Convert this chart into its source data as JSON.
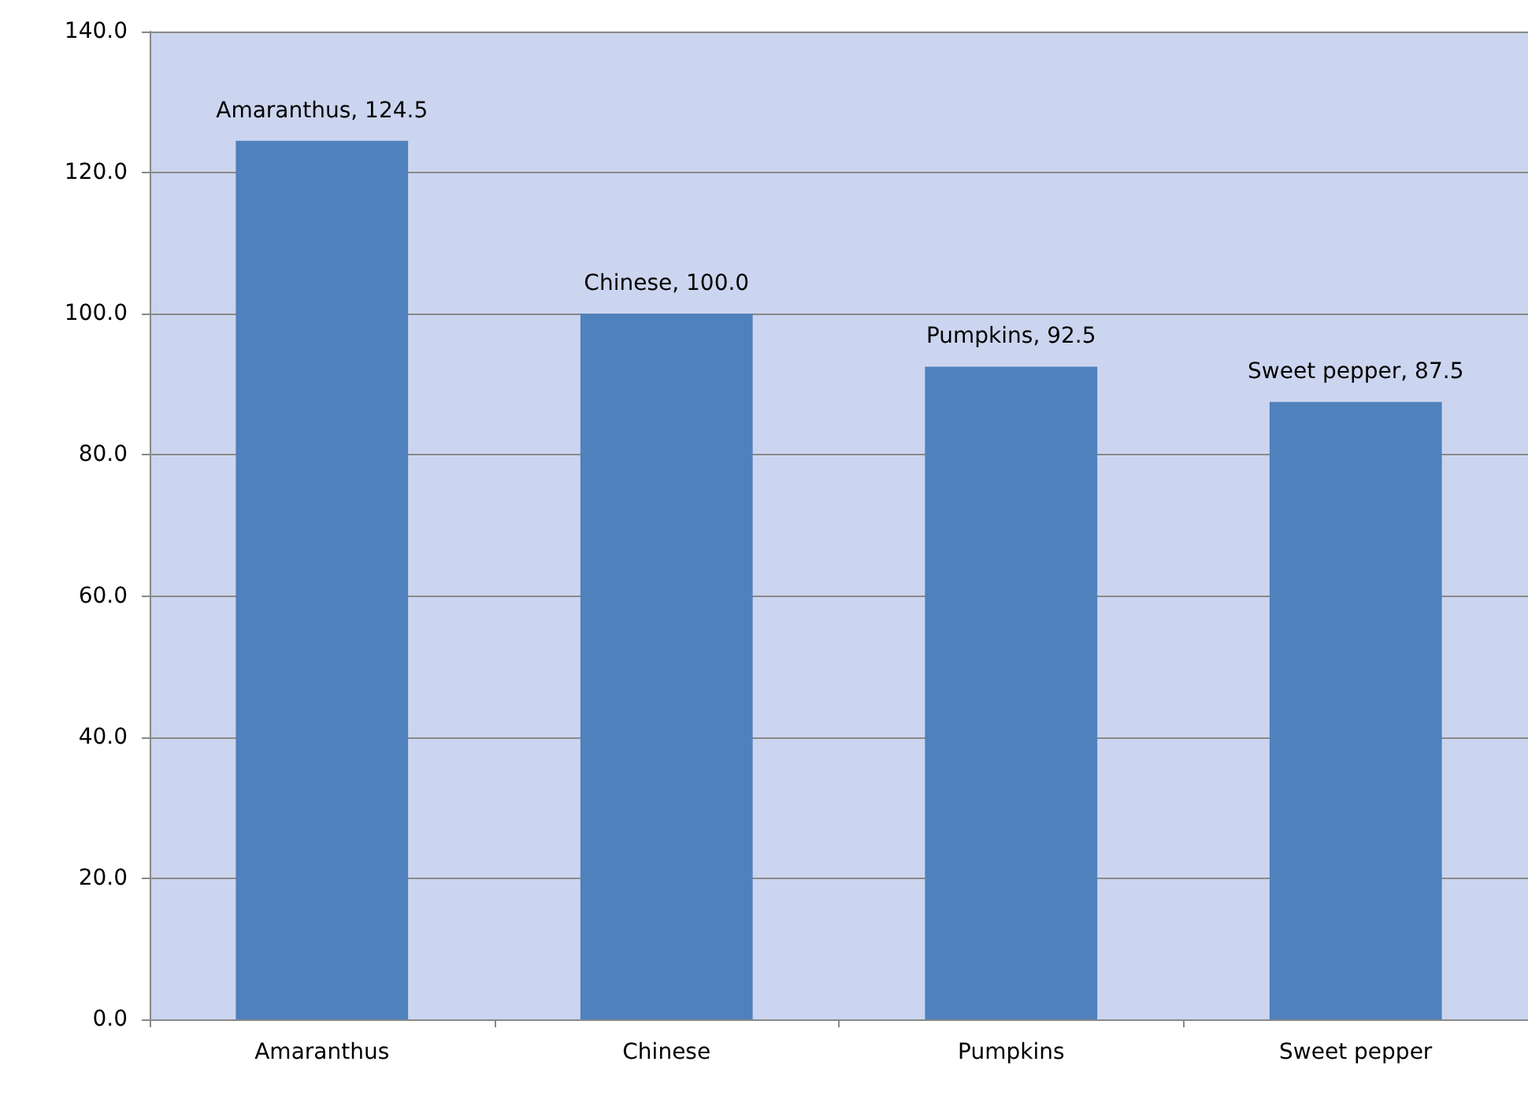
{
  "chart_data": {
    "type": "bar",
    "categories": [
      "Amaranthus",
      "Chinese",
      "Pumpkins",
      "Sweet pepper"
    ],
    "values": [
      124.5,
      100.0,
      92.5,
      87.5
    ],
    "value_labels": [
      "Amaranthus, 124.5",
      "Chinese, 100.0",
      "Pumpkins, 92.5",
      "Sweet pepper, 87.5"
    ],
    "color": "#4f81bd",
    "ylim": [
      0,
      140
    ],
    "yticks": [
      {
        "value": 0,
        "label": "0.0"
      },
      {
        "value": 20,
        "label": "20.0"
      },
      {
        "value": 40,
        "label": "40.0"
      },
      {
        "value": 60,
        "label": "60.0"
      },
      {
        "value": 80,
        "label": "80.0"
      },
      {
        "value": 100,
        "label": "100.0"
      },
      {
        "value": 120,
        "label": "120.0"
      },
      {
        "value": 140,
        "label": "140.0"
      }
    ],
    "grid": "y"
  }
}
